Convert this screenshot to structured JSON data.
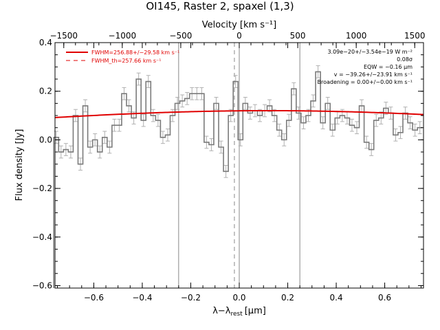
{
  "chart_data": {
    "type": "line",
    "title": "OI145, Raster 2, spaxel (1,3)",
    "xlabel": "λ−λ",
    "xlabel_sub": "rest",
    "xlabel_unit": "[μm]",
    "ylabel": "Flux density [Jy]",
    "top_axis_label": "Velocity [km s⁻¹]",
    "xlim": [
      -0.76,
      0.76
    ],
    "ylim": [
      -0.61,
      0.4
    ],
    "top_xlim": [
      -1575,
      1575
    ],
    "x_ticks": [
      -0.6,
      -0.4,
      -0.2,
      0.0,
      0.2,
      0.4,
      0.6
    ],
    "x_tick_labels": [
      "−0.6",
      "−0.4",
      "−0.2",
      "0.0",
      "0.2",
      "0.4",
      "0.6"
    ],
    "y_ticks": [
      -0.6,
      -0.4,
      -0.2,
      0.0,
      0.2,
      0.4
    ],
    "y_tick_labels": [
      "−0.6",
      "−0.4",
      "−0.2",
      "0.0",
      "0.2",
      "0.4"
    ],
    "top_ticks": [
      -1500,
      -1000,
      -500,
      0,
      500,
      1000,
      1500
    ],
    "top_tick_labels": [
      "−1500",
      "−1000",
      "−500",
      "0",
      "500",
      "1000",
      "1500"
    ],
    "vlines_solid": [
      -0.25,
      0.0,
      0.25
    ],
    "vline_dashed": -0.02,
    "spectrum": {
      "x": [
        -0.755,
        -0.735,
        -0.715,
        -0.695,
        -0.675,
        -0.655,
        -0.635,
        -0.615,
        -0.595,
        -0.575,
        -0.555,
        -0.535,
        -0.515,
        -0.495,
        -0.475,
        -0.455,
        -0.435,
        -0.415,
        -0.395,
        -0.375,
        -0.355,
        -0.335,
        -0.315,
        -0.295,
        -0.275,
        -0.255,
        -0.235,
        -0.215,
        -0.195,
        -0.175,
        -0.155,
        -0.135,
        -0.115,
        -0.095,
        -0.075,
        -0.055,
        -0.035,
        -0.015,
        0.005,
        0.025,
        0.045,
        0.065,
        0.085,
        0.105,
        0.125,
        0.145,
        0.165,
        0.185,
        0.205,
        0.225,
        0.245,
        0.265,
        0.285,
        0.305,
        0.325,
        0.345,
        0.365,
        0.385,
        0.405,
        0.425,
        0.445,
        0.465,
        0.485,
        0.505,
        0.525,
        0.545,
        0.565,
        0.585,
        0.605,
        0.625,
        0.645,
        0.665,
        0.685,
        0.705,
        0.725,
        0.745
      ],
      "y": [
        0.01,
        -0.05,
        -0.04,
        -0.05,
        0.1,
        -0.1,
        0.14,
        -0.03,
        0.0,
        -0.05,
        0.01,
        -0.03,
        0.06,
        0.06,
        0.19,
        0.14,
        0.09,
        0.25,
        0.08,
        0.24,
        0.1,
        0.08,
        0.01,
        0.02,
        0.1,
        0.15,
        0.16,
        0.17,
        0.19,
        0.19,
        0.19,
        -0.01,
        -0.02,
        0.15,
        -0.03,
        -0.13,
        0.1,
        0.24,
        0.0,
        0.15,
        0.11,
        0.12,
        0.1,
        0.12,
        0.14,
        0.1,
        0.04,
        0.0,
        0.08,
        0.21,
        0.11,
        0.07,
        0.1,
        0.16,
        0.28,
        0.07,
        0.15,
        0.04,
        0.09,
        0.1,
        0.09,
        0.06,
        0.05,
        0.14,
        -0.01,
        -0.04,
        0.08,
        0.09,
        0.13,
        0.11,
        0.02,
        0.03,
        0.11,
        0.07,
        0.04,
        0.05
      ],
      "err": 0.025
    },
    "fit": {
      "center": 0.12,
      "amplitude": 0.12,
      "sigma": 1.2,
      "offset": 0.0
    },
    "series": [
      {
        "name": "FWHM=256.88+/−29.58 km s⁻¹",
        "style": "solid",
        "color": "#e00000"
      },
      {
        "name": "FWHM_th=257.66 km s⁻¹",
        "style": "dashed",
        "color": "#e00000"
      }
    ],
    "annotations": [
      "3.09e−20+/−3.54e−19 W m⁻²",
      "0.08σ",
      "EQW = −0.16 μm",
      "v = −39.26+/−23.91 km s⁻¹",
      "Broadening = 0.00+/−0.00 km s⁻¹"
    ],
    "colors": {
      "spectrum": "#7a7a7a",
      "error_bar": "#b0b0b0",
      "fit": "#e00000",
      "vline": "#888888"
    }
  }
}
